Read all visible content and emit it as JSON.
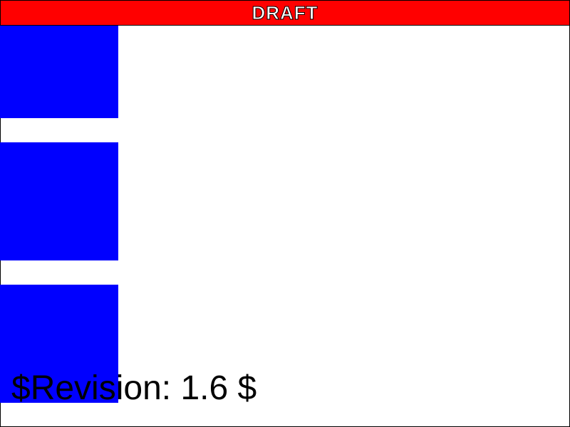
{
  "banner": {
    "label": "DRAFT",
    "background_color": "#ff0000",
    "text_color": "#ffffff"
  },
  "blocks": {
    "color": "#0000ff",
    "count": 3
  },
  "revision": {
    "text": "$Revision: 1.6 $"
  },
  "page": {
    "background_color": "#ffffff",
    "border_color": "#000000"
  }
}
